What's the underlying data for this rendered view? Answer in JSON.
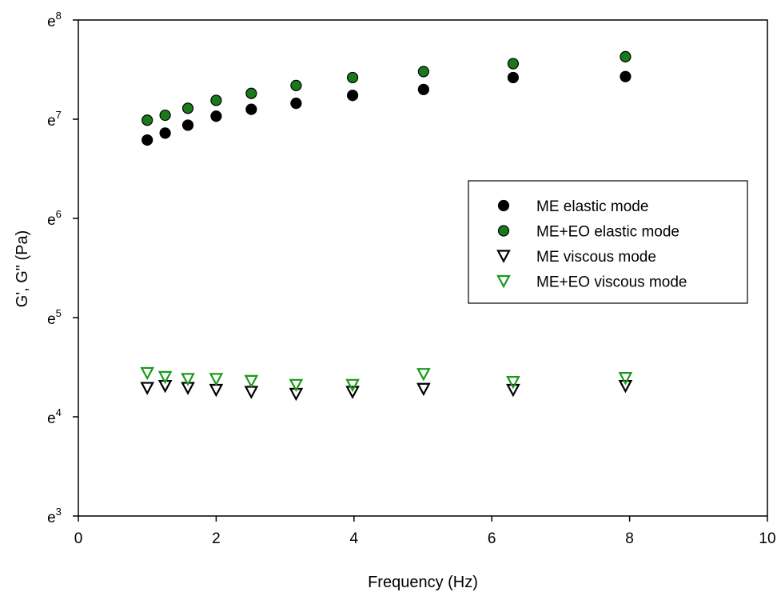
{
  "chart_data": {
    "type": "scatter",
    "title": "",
    "xlabel": "Frequency (Hz)",
    "ylabel": "G', G\" (Pa)",
    "xlim": [
      0,
      10
    ],
    "ylim_ln": [
      3,
      8
    ],
    "y_scale": "natural log",
    "grid": false,
    "legend_position": "right",
    "x_ticks": [
      {
        "value": 0,
        "label": "0"
      },
      {
        "value": 2,
        "label": "2"
      },
      {
        "value": 4,
        "label": "4"
      },
      {
        "value": 6,
        "label": "6"
      },
      {
        "value": 8,
        "label": "8"
      },
      {
        "value": 10,
        "label": "10"
      }
    ],
    "y_ticks": [
      {
        "ln": 3,
        "base": "e",
        "exp": "3"
      },
      {
        "ln": 4,
        "base": "e",
        "exp": "4"
      },
      {
        "ln": 5,
        "base": "e",
        "exp": "5"
      },
      {
        "ln": 6,
        "base": "e",
        "exp": "6"
      },
      {
        "ln": 7,
        "base": "e",
        "exp": "7"
      },
      {
        "ln": 8,
        "base": "e",
        "exp": "8"
      }
    ],
    "x": [
      1,
      1.26,
      1.59,
      2,
      2.51,
      3.16,
      3.98,
      5.01,
      6.31,
      7.94
    ],
    "series": [
      {
        "name": "ME elastic mode",
        "marker": "circle",
        "fill": "#000000",
        "stroke": "#000000",
        "values_ln": [
          6.79,
          6.86,
          6.94,
          7.03,
          7.1,
          7.16,
          7.24,
          7.3,
          7.42,
          7.43
        ]
      },
      {
        "name": "ME+EO elastic mode",
        "marker": "circle",
        "fill": "#1a7a1a",
        "stroke": "#000000",
        "values_ln": [
          6.99,
          7.04,
          7.11,
          7.19,
          7.26,
          7.34,
          7.42,
          7.48,
          7.56,
          7.63
        ]
      },
      {
        "name": "ME viscous mode",
        "marker": "triangle-down-open",
        "fill": "none",
        "stroke": "#000000",
        "values_ln": [
          4.29,
          4.31,
          4.29,
          4.27,
          4.25,
          4.23,
          4.25,
          4.28,
          4.27,
          4.31
        ]
      },
      {
        "name": "ME+EO viscous mode",
        "marker": "triangle-down-open",
        "fill": "none",
        "stroke": "#1a9a1a",
        "values_ln": [
          4.44,
          4.4,
          4.38,
          4.38,
          4.36,
          4.32,
          4.32,
          4.43,
          4.35,
          4.39
        ]
      }
    ]
  }
}
